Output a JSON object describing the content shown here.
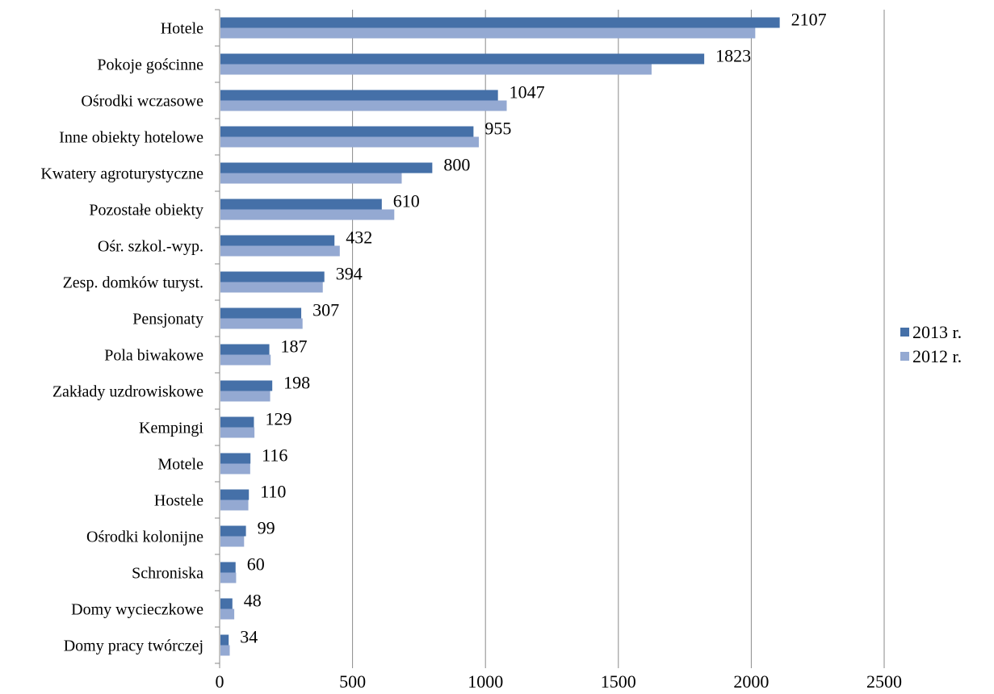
{
  "chart_data": {
    "type": "bar",
    "orientation": "horizontal",
    "title": "",
    "xlabel": "",
    "ylabel": "",
    "xlim": [
      0,
      2500
    ],
    "x_ticks": [
      "0",
      "500",
      "1000",
      "1500",
      "2000",
      "2500"
    ],
    "grid": "vertical",
    "legend_position": "right",
    "categories": [
      "Hotele",
      "Pokoje gościnne",
      "Ośrodki wczasowe",
      "Inne obiekty hotelowe",
      "Kwatery agroturystyczne",
      "Pozostałe obiekty",
      "Ośr. szkol.-wyp.",
      "Zesp. domków turyst.",
      "Pensjonaty",
      "Pola biwakowe",
      "Zakłady uzdrowiskowe",
      "Kempingi",
      "Motele",
      "Hostele",
      "Ośrodki kolonijne",
      "Schroniska",
      "Domy wycieczkowe",
      "Domy pracy twórczej"
    ],
    "series": [
      {
        "name": "2013 r.",
        "color": "#4570A8",
        "values": [
          2107,
          1823,
          1047,
          955,
          800,
          610,
          432,
          394,
          307,
          187,
          198,
          129,
          116,
          110,
          99,
          60,
          48,
          34
        ],
        "labels": [
          "2107",
          "1823",
          "1047",
          "955",
          "800",
          "610",
          "432",
          "394",
          "307",
          "187",
          "198",
          "129",
          "116",
          "110",
          "99",
          "60",
          "48",
          "34"
        ]
      },
      {
        "name": "2012 r.",
        "color": "#94A9D2",
        "values": [
          2015,
          1625,
          1080,
          975,
          685,
          657,
          452,
          388,
          312,
          192,
          190,
          131,
          115,
          108,
          92,
          62,
          55,
          38
        ]
      }
    ]
  }
}
